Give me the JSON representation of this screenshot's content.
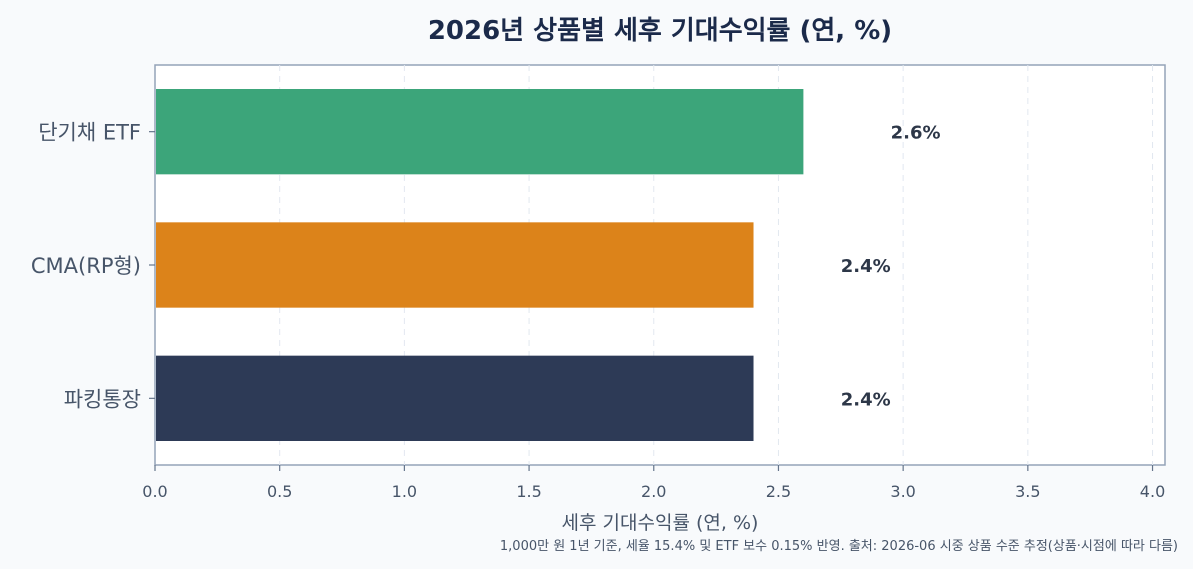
{
  "chart_data": {
    "type": "bar",
    "orientation": "horizontal",
    "title": "2026년 상품별 세후 기대수익률 (연, %)",
    "xlabel": "세후 기대수익률 (연, %)",
    "ylabel": "",
    "xlim": [
      0,
      4.05
    ],
    "xticks": [
      "0.0",
      "0.5",
      "1.0",
      "1.5",
      "2.0",
      "2.5",
      "3.0",
      "3.5",
      "4.0"
    ],
    "grid": "vertical dashed",
    "categories": [
      "단기채 ETF",
      "CMA(RP형)",
      "파킹통장"
    ],
    "values": [
      2.6,
      2.4,
      2.4
    ],
    "value_labels": [
      "2.6%",
      "2.4%",
      "2.4%"
    ],
    "colors": [
      "#3ca57a",
      "#dc831a",
      "#2d3a56"
    ],
    "footnote": "1,000만 원 1년 기준, 세율 15.4% 및 ETF 보수 0.15% 반영. 출처: 2026-06 시중 상품 수준 추정(상품·시점에 따라 다름)"
  }
}
